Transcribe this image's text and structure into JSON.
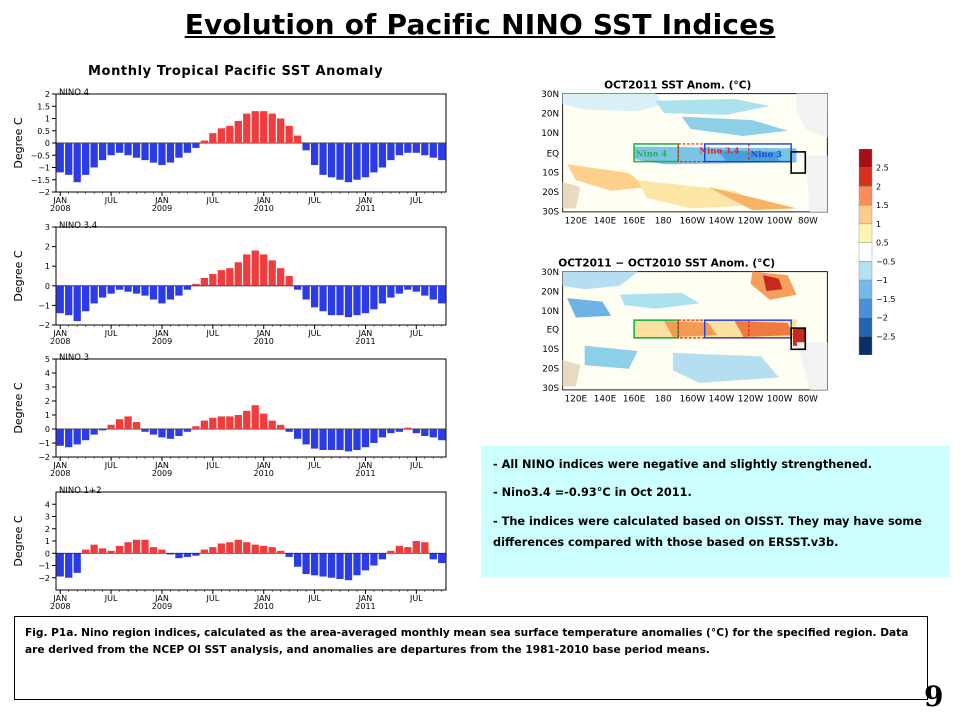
{
  "title": "Evolution of Pacific NINO SST Indices",
  "chart_heading": "Monthly Tropical Pacific SST Anomaly",
  "chart_data": [
    {
      "type": "bar",
      "title": "NINO 4",
      "ylabel": "Degree C",
      "ylim": [
        -2,
        2
      ],
      "yticks": [
        -2,
        -1.5,
        -1,
        -0.5,
        0,
        0.5,
        1,
        1.5,
        2
      ],
      "ytick_labels": [
        "−2",
        "−1.5",
        "−1",
        "−0.5",
        "0",
        "0.5",
        "1",
        "1.5",
        "2"
      ],
      "xtick_labels": [
        "JAN\n2008",
        "JUL",
        "JAN\n2009",
        "JUL",
        "JAN\n2010",
        "JUL",
        "JAN\n2011",
        "JUL"
      ],
      "start": "2008-01",
      "values": [
        -1.2,
        -1.3,
        -1.6,
        -1.3,
        -1.0,
        -0.7,
        -0.5,
        -0.4,
        -0.5,
        -0.6,
        -0.7,
        -0.8,
        -0.9,
        -0.8,
        -0.6,
        -0.4,
        -0.2,
        0.1,
        0.4,
        0.6,
        0.7,
        0.9,
        1.2,
        1.3,
        1.3,
        1.2,
        1.0,
        0.7,
        0.3,
        -0.3,
        -0.9,
        -1.3,
        -1.4,
        -1.5,
        -1.6,
        -1.5,
        -1.4,
        -1.2,
        -1.0,
        -0.7,
        -0.5,
        -0.4,
        -0.4,
        -0.5,
        -0.6,
        -0.7
      ]
    },
    {
      "type": "bar",
      "title": "NINO 3.4",
      "ylabel": "Degree C",
      "ylim": [
        -2,
        3
      ],
      "yticks": [
        -2,
        -1,
        0,
        1,
        2,
        3
      ],
      "ytick_labels": [
        "−2",
        "−1",
        "0",
        "1",
        "2",
        "3"
      ],
      "xtick_labels": [
        "JAN\n2008",
        "JUL",
        "JAN\n2009",
        "JUL",
        "JAN\n2010",
        "JUL",
        "JAN\n2011",
        "JUL"
      ],
      "start": "2008-01",
      "values": [
        -1.4,
        -1.5,
        -1.8,
        -1.3,
        -0.9,
        -0.6,
        -0.4,
        -0.2,
        -0.3,
        -0.4,
        -0.5,
        -0.7,
        -0.9,
        -0.7,
        -0.5,
        -0.2,
        0.1,
        0.4,
        0.6,
        0.8,
        0.9,
        1.2,
        1.6,
        1.8,
        1.6,
        1.3,
        0.9,
        0.5,
        -0.2,
        -0.7,
        -1.1,
        -1.3,
        -1.5,
        -1.5,
        -1.6,
        -1.5,
        -1.4,
        -1.2,
        -0.9,
        -0.6,
        -0.4,
        -0.2,
        -0.3,
        -0.5,
        -0.7,
        -0.9
      ]
    },
    {
      "type": "bar",
      "title": "NINO 3",
      "ylabel": "Degree C",
      "ylim": [
        -2,
        5
      ],
      "yticks": [
        -2,
        -1,
        0,
        1,
        2,
        3,
        4,
        5
      ],
      "ytick_labels": [
        "−2",
        "−1",
        "0",
        "1",
        "2",
        "3",
        "4",
        "5"
      ],
      "xtick_labels": [
        "JAN\n2008",
        "JUL",
        "JAN\n2009",
        "JUL",
        "JAN\n2010",
        "JUL",
        "JAN\n2011",
        "JUL"
      ],
      "start": "2008-01",
      "values": [
        -1.2,
        -1.3,
        -1.1,
        -0.8,
        -0.4,
        -0.1,
        0.3,
        0.7,
        0.9,
        0.5,
        -0.2,
        -0.4,
        -0.6,
        -0.7,
        -0.5,
        -0.2,
        0.2,
        0.6,
        0.8,
        0.9,
        0.9,
        1.0,
        1.3,
        1.7,
        1.1,
        0.6,
        0.3,
        -0.2,
        -0.7,
        -1.1,
        -1.4,
        -1.5,
        -1.5,
        -1.5,
        -1.6,
        -1.5,
        -1.3,
        -1.0,
        -0.6,
        -0.3,
        -0.2,
        0.1,
        -0.3,
        -0.5,
        -0.6,
        -0.8
      ]
    },
    {
      "type": "bar",
      "title": "NINO 1+2",
      "ylabel": "Degree C",
      "ylim": [
        -3,
        5
      ],
      "yticks": [
        -2,
        -1,
        0,
        1,
        2,
        3,
        4
      ],
      "ytick_labels": [
        "−2",
        "−1",
        "0",
        "1",
        "2",
        "3",
        "4"
      ],
      "xtick_labels": [
        "JAN\n2008",
        "JUL",
        "JAN\n2009",
        "JUL",
        "JAN\n2010",
        "JUL",
        "JAN\n2011",
        "JUL"
      ],
      "start": "2008-01",
      "values": [
        -1.9,
        -2.0,
        -1.6,
        0.3,
        0.7,
        0.4,
        0.2,
        0.6,
        0.9,
        1.1,
        1.1,
        0.5,
        0.3,
        -0.1,
        -0.4,
        -0.3,
        -0.2,
        0.3,
        0.5,
        0.8,
        0.9,
        1.1,
        0.9,
        0.7,
        0.6,
        0.5,
        0.2,
        -0.3,
        -1.1,
        -1.7,
        -1.8,
        -1.9,
        -2.0,
        -2.1,
        -2.2,
        -1.8,
        -1.4,
        -1.0,
        -0.5,
        0.2,
        0.6,
        0.5,
        1.0,
        0.9,
        -0.5,
        -0.8
      ]
    }
  ],
  "maps": [
    {
      "title": "OCT2011 SST Anom. (°C)",
      "lat_labels": [
        "30N",
        "20N",
        "10N",
        "EQ",
        "10S",
        "20S",
        "30S"
      ],
      "lon_labels": [
        "120E",
        "140E",
        "160E",
        "180",
        "160W",
        "140W",
        "120W",
        "100W",
        "80W"
      ],
      "box_labels": [
        "Nino 4",
        "Nino 3.4",
        "Nino 3"
      ]
    },
    {
      "title": "OCT2011 − OCT2010 SST Anom. (°C)",
      "lat_labels": [
        "30N",
        "20N",
        "10N",
        "EQ",
        "10S",
        "20S",
        "30S"
      ],
      "lon_labels": [
        "120E",
        "140E",
        "160E",
        "180",
        "160W",
        "140W",
        "120W",
        "100W",
        "80W"
      ]
    }
  ],
  "colorbar": {
    "labels": [
      "2.5",
      "2",
      "1.5",
      "1",
      "0.5",
      "−0.5",
      "−1",
      "−1.5",
      "−2",
      "−2.5"
    ],
    "colors": [
      "#a50f15",
      "#d7301f",
      "#fc8d59",
      "#fdcc8a",
      "#fff3b0",
      "#ffffff",
      "#b3e0f2",
      "#74b9e8",
      "#4a90d9",
      "#2166ac",
      "#08306b"
    ]
  },
  "notes": [
    "- All NINO indices were negative and slightly strengthened.",
    "- Nino3.4 =-0.93°C in Oct 2011.",
    "- The indices were calculated based on OISST. They may have some differences compared with those based on ERSST.v3b."
  ],
  "caption": "Fig. P1a. Nino region indices, calculated as the area-averaged monthly mean sea surface temperature anomalies (°C) for the specified region. Data are derived from the NCEP OI SST analysis, and anomalies are departures from the 1981-2010 base period means.",
  "page_number": "9",
  "colors": {
    "positive_bar": "#f03c3c",
    "negative_bar": "#2b3be6"
  }
}
